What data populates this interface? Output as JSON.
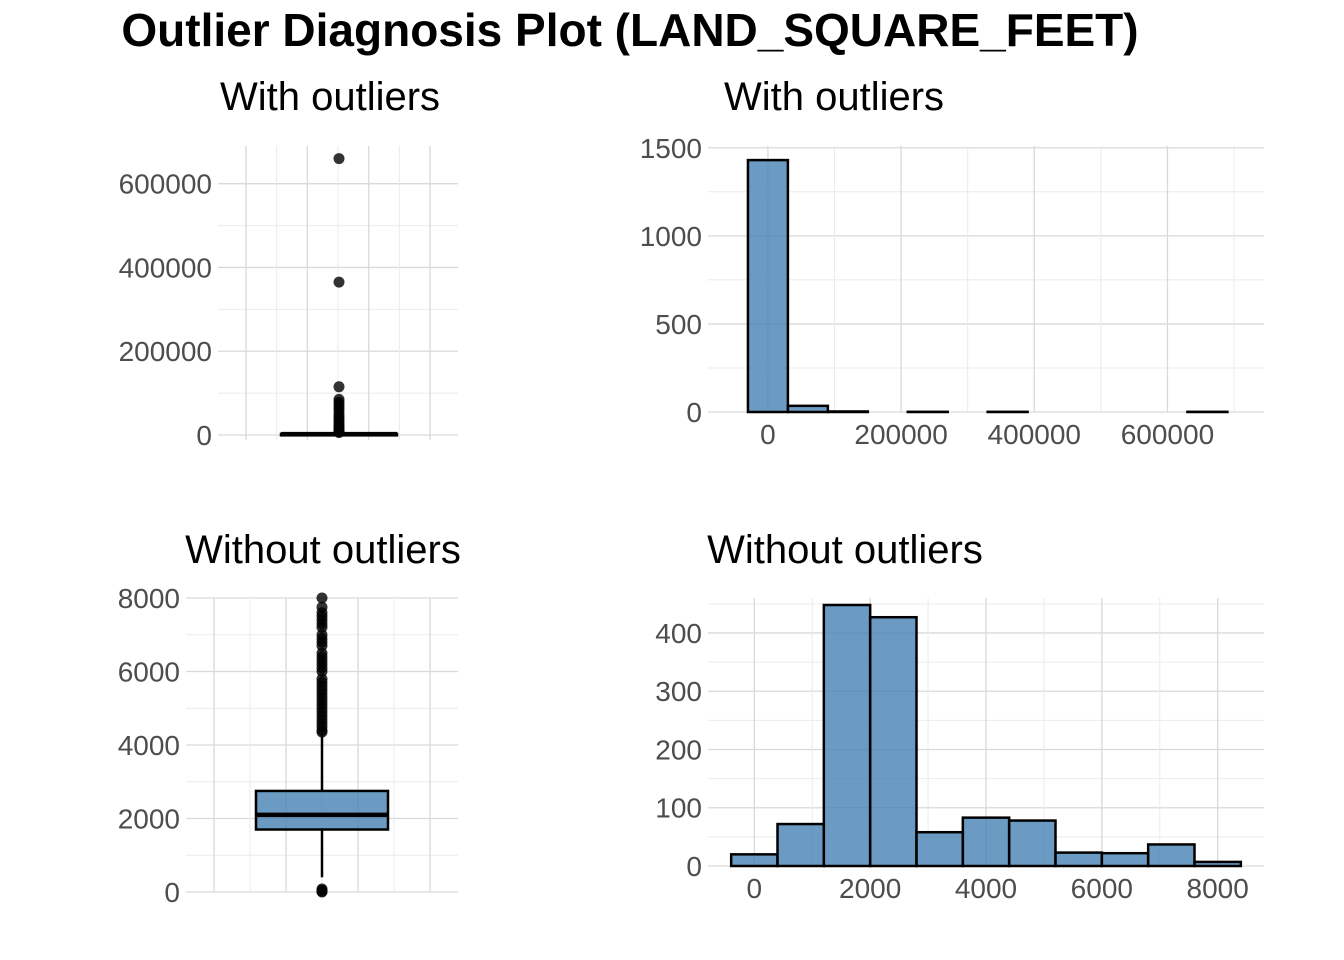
{
  "title": "Outlier Diagnosis Plot (LAND_SQUARE_FEET)",
  "colors": {
    "fill": "#4682b4",
    "outline": "#000000",
    "point": "#000000"
  },
  "chart_data": [
    {
      "type": "boxplot",
      "title": "With outliers",
      "ylim": [
        -12000,
        690000
      ],
      "yticks": [
        0,
        200000,
        400000,
        600000
      ],
      "ytick_labels": [
        "0",
        "200000",
        "400000",
        "600000"
      ],
      "box": {
        "q1": 1700,
        "median": 2050,
        "q3": 2700,
        "whisker_low": 0,
        "whisker_high": 4200
      },
      "outliers": [
        660000,
        365000,
        115000,
        85000,
        78000,
        72000,
        65000,
        58000,
        50000,
        44000,
        38000,
        32000,
        27000,
        22000,
        18000,
        14000,
        11000,
        9000,
        7500,
        6000
      ]
    },
    {
      "type": "bar",
      "title": "With outliers",
      "xlim": [
        -90000,
        745000
      ],
      "ylim": [
        0,
        1510
      ],
      "xticks": [
        0,
        200000,
        400000,
        600000
      ],
      "xtick_labels": [
        "0",
        "200000",
        "400000",
        "600000"
      ],
      "yticks": [
        0,
        500,
        1000,
        1500
      ],
      "ytick_labels": [
        "0",
        "500",
        "1000",
        "1500"
      ],
      "bin_edges": [
        -30000,
        30000,
        90000,
        150000,
        210000,
        270000,
        330000,
        390000,
        450000,
        510000,
        570000,
        630000,
        690000
      ],
      "counts": [
        1430,
        35,
        3,
        0,
        1,
        0,
        1,
        0,
        0,
        0,
        0,
        1
      ]
    },
    {
      "type": "boxplot",
      "title": "Without outliers",
      "ylim": [
        0,
        8000
      ],
      "yticks": [
        0,
        2000,
        4000,
        6000,
        8000
      ],
      "ytick_labels": [
        "0",
        "2000",
        "4000",
        "6000",
        "8000"
      ],
      "box": {
        "q1": 1700,
        "median": 2100,
        "q3": 2750,
        "whisker_low": 400,
        "whisker_high": 4300
      },
      "outliers": [
        8000,
        7750,
        7600,
        7500,
        7400,
        7300,
        7200,
        7000,
        6900,
        6800,
        6700,
        6500,
        6400,
        6300,
        6200,
        6100,
        6000,
        5800,
        5700,
        5600,
        5500,
        5400,
        5300,
        5200,
        5100,
        5000,
        4900,
        4800,
        4700,
        4600,
        4500,
        4400,
        4350,
        80,
        50,
        20,
        0
      ]
    },
    {
      "type": "bar",
      "title": "Without outliers",
      "xlim": [
        -800,
        8800
      ],
      "ylim": [
        0,
        460
      ],
      "xticks": [
        0,
        2000,
        4000,
        6000,
        8000
      ],
      "xtick_labels": [
        "0",
        "2000",
        "4000",
        "6000",
        "8000"
      ],
      "yticks": [
        0,
        100,
        200,
        300,
        400
      ],
      "ytick_labels": [
        "0",
        "100",
        "200",
        "300",
        "400"
      ],
      "bin_edges": [
        -400,
        400,
        1200,
        2000,
        2800,
        3600,
        4400,
        5200,
        6000,
        6800,
        7600,
        8400
      ],
      "counts": [
        20,
        72,
        448,
        427,
        58,
        83,
        78,
        23,
        22,
        37,
        7
      ]
    }
  ]
}
